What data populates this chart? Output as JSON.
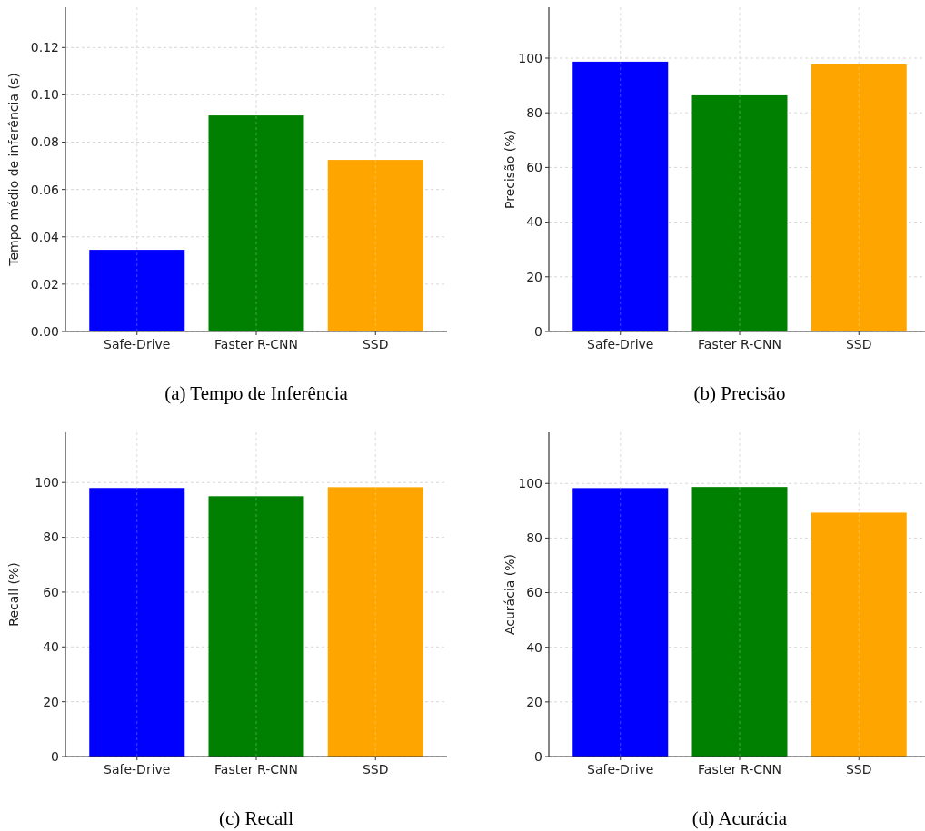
{
  "chart_data": [
    {
      "type": "bar",
      "title": "(a)  Tempo de Inferência",
      "ylabel": "Tempo médio de inferência (s)",
      "categories": [
        "Safe-Drive",
        "Faster R-CNN",
        "SSD"
      ],
      "values": [
        0.0345,
        0.0913,
        0.0725
      ],
      "colors": [
        "#0000ff",
        "#008000",
        "#ffa500"
      ],
      "ylim": [
        0,
        0.137
      ],
      "yticks": [
        {
          "value": 0,
          "label": "0.00"
        },
        0.02,
        0.04,
        0.06,
        0.08,
        {
          "value": 0.1,
          "label": "0.10"
        },
        0.12
      ],
      "grid": true
    },
    {
      "type": "bar",
      "title": "(b)  Precisão",
      "ylabel": "Precisão (%)",
      "categories": [
        "Safe-Drive",
        "Faster R-CNN",
        "SSD"
      ],
      "values": [
        98.7,
        86.4,
        97.7
      ],
      "colors": [
        "#0000ff",
        "#008000",
        "#ffa500"
      ],
      "ylim": [
        0,
        118.6
      ],
      "yticks": [
        0,
        20,
        40,
        60,
        80,
        100
      ],
      "grid": true
    },
    {
      "type": "bar",
      "title": "(c)  Recall",
      "ylabel": "Recall (%)",
      "categories": [
        "Safe-Drive",
        "Faster R-CNN",
        "SSD"
      ],
      "values": [
        98.0,
        95.0,
        98.3
      ],
      "colors": [
        "#0000ff",
        "#008000",
        "#ffa500"
      ],
      "ylim": [
        0,
        118.3
      ],
      "yticks": [
        0,
        20,
        40,
        60,
        80,
        100
      ],
      "grid": true
    },
    {
      "type": "bar",
      "title": "(d)  Acurácia",
      "ylabel": "Acurácia (%)",
      "categories": [
        "Safe-Drive",
        "Faster R-CNN",
        "SSD"
      ],
      "values": [
        98.3,
        98.7,
        89.3
      ],
      "colors": [
        "#0000ff",
        "#008000",
        "#ffa500"
      ],
      "ylim": [
        0,
        118.7
      ],
      "yticks": [
        0,
        20,
        40,
        60,
        80,
        100
      ],
      "grid": true
    }
  ]
}
